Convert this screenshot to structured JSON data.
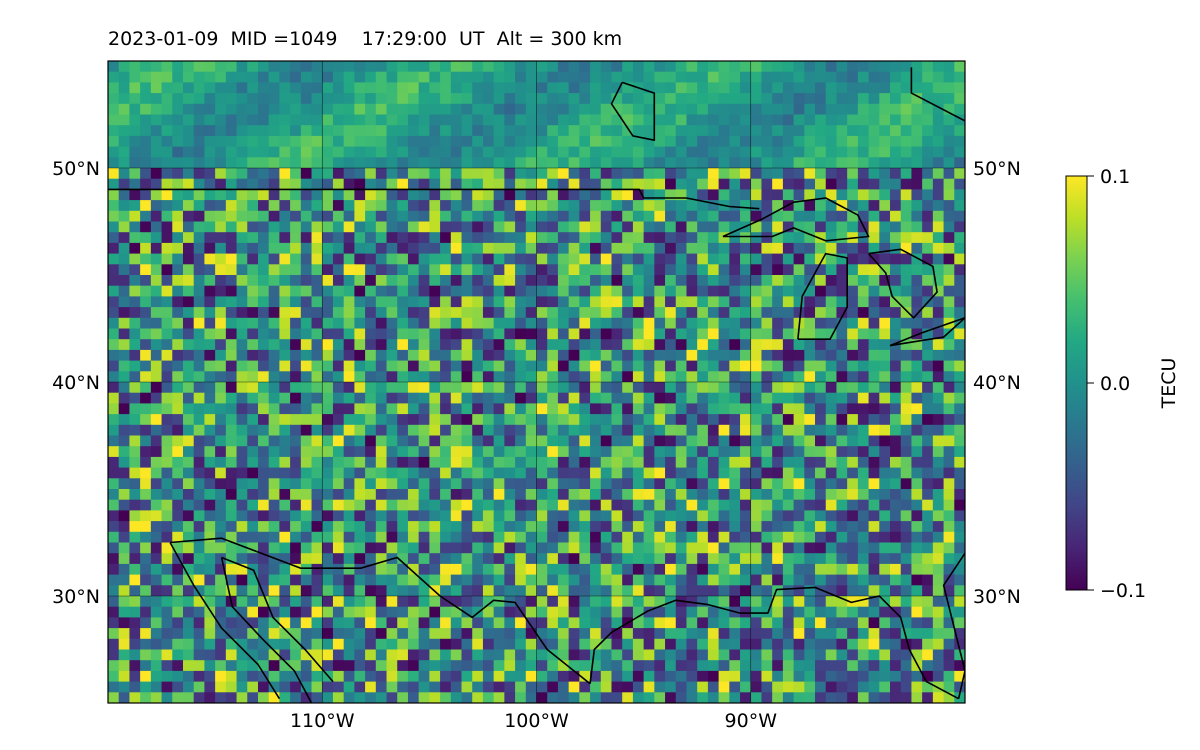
{
  "title": "2023-01-09  MID =1049    17:29:00  UT  Alt = 300 km",
  "map": {
    "lon_range": [
      -120,
      -80
    ],
    "lat_range": [
      25,
      55
    ],
    "lat_ticks": [
      {
        "value": 30,
        "label": "30°N"
      },
      {
        "value": 40,
        "label": "40°N"
      },
      {
        "value": 50,
        "label": "50°N"
      }
    ],
    "lon_ticks": [
      {
        "value": -110,
        "label": "110°W"
      },
      {
        "value": -100,
        "label": "100°W"
      },
      {
        "value": -90,
        "label": "90°W"
      }
    ],
    "grid": true,
    "field": {
      "quantity": "TEC perturbation",
      "units": "TECU",
      "vmin": -0.1,
      "vmax": 0.1,
      "colormap": "viridis",
      "cell_deg": 0.5
    },
    "coastlines": [
      {
        "name": "canada-us-border",
        "points": [
          [
            -120,
            49
          ],
          [
            -95.2,
            49
          ],
          [
            -95,
            48.6
          ],
          [
            -93,
            48.6
          ],
          [
            -91,
            48.2
          ],
          [
            -89.6,
            48.1
          ]
        ]
      },
      {
        "name": "lake-superior",
        "points": [
          [
            -91.3,
            46.8
          ],
          [
            -89.5,
            47.6
          ],
          [
            -88,
            48.4
          ],
          [
            -86.5,
            48.6
          ],
          [
            -85,
            47.8
          ],
          [
            -84.5,
            46.8
          ],
          [
            -86.5,
            46.6
          ],
          [
            -88,
            47.2
          ],
          [
            -89,
            46.8
          ],
          [
            -91.3,
            46.8
          ]
        ]
      },
      {
        "name": "lake-michigan",
        "points": [
          [
            -87.8,
            42
          ],
          [
            -87.6,
            44
          ],
          [
            -86.5,
            46
          ],
          [
            -85.5,
            45.8
          ],
          [
            -85.5,
            43.5
          ],
          [
            -86.3,
            42
          ],
          [
            -87.8,
            42
          ]
        ]
      },
      {
        "name": "lake-huron",
        "points": [
          [
            -84.5,
            46
          ],
          [
            -83,
            46.2
          ],
          [
            -81.5,
            45.4
          ],
          [
            -81.3,
            44.2
          ],
          [
            -82.4,
            43
          ],
          [
            -83.4,
            44
          ],
          [
            -83.7,
            45.1
          ],
          [
            -84.5,
            46
          ]
        ]
      },
      {
        "name": "lake-erie",
        "points": [
          [
            -83.5,
            41.7
          ],
          [
            -82,
            42.3
          ],
          [
            -80,
            43
          ],
          [
            -81,
            42.1
          ],
          [
            -83.5,
            41.7
          ]
        ]
      },
      {
        "name": "hudson-bay-edge",
        "points": [
          [
            -82.5,
            54.7
          ],
          [
            -82.5,
            53.5
          ],
          [
            -80,
            52.2
          ]
        ]
      },
      {
        "name": "canadian-shore",
        "points": [
          [
            -96,
            54
          ],
          [
            -94.5,
            53.5
          ],
          [
            -94.5,
            51.3
          ],
          [
            -95.5,
            51.5
          ],
          [
            -96.5,
            53
          ],
          [
            -96,
            54
          ]
        ]
      },
      {
        "name": "us-mexico-border",
        "points": [
          [
            -117.1,
            32.5
          ],
          [
            -114.7,
            32.7
          ],
          [
            -111,
            31.3
          ],
          [
            -108.2,
            31.3
          ],
          [
            -106.5,
            31.8
          ],
          [
            -104.5,
            30
          ],
          [
            -103,
            29
          ],
          [
            -102,
            29.8
          ],
          [
            -101,
            29.7
          ],
          [
            -99.5,
            27.5
          ],
          [
            -97.5,
            25.9
          ]
        ]
      },
      {
        "name": "gulf-coast",
        "points": [
          [
            -97.5,
            25.9
          ],
          [
            -97.3,
            27.5
          ],
          [
            -96.5,
            28.3
          ],
          [
            -94.8,
            29.3
          ],
          [
            -93.5,
            29.8
          ],
          [
            -92,
            29.6
          ],
          [
            -90.5,
            29.2
          ],
          [
            -89.2,
            29.2
          ],
          [
            -88.8,
            30.3
          ],
          [
            -87,
            30.4
          ],
          [
            -85.3,
            29.7
          ],
          [
            -84,
            30
          ],
          [
            -83,
            29
          ],
          [
            -82.6,
            27.5
          ],
          [
            -81.8,
            26
          ],
          [
            -80.3,
            25.2
          ]
        ]
      },
      {
        "name": "atlantic-coast",
        "points": [
          [
            -80,
            32
          ],
          [
            -81,
            30.5
          ],
          [
            -80.5,
            28.5
          ],
          [
            -80,
            26.5
          ],
          [
            -80.3,
            25.2
          ]
        ]
      },
      {
        "name": "baja-california",
        "points": [
          [
            -117.1,
            32.5
          ],
          [
            -116,
            30.5
          ],
          [
            -114.7,
            28.5
          ],
          [
            -113,
            26.8
          ],
          [
            -112,
            25.2
          ]
        ]
      },
      {
        "name": "gulf-of-california",
        "points": [
          [
            -114.7,
            31.8
          ],
          [
            -114.2,
            29.5
          ],
          [
            -112.8,
            28
          ],
          [
            -111.3,
            26.5
          ],
          [
            -110.5,
            25
          ]
        ]
      },
      {
        "name": "mexico-west-coast",
        "points": [
          [
            -114.7,
            31.8
          ],
          [
            -113.2,
            31.2
          ],
          [
            -112.3,
            29
          ],
          [
            -110.8,
            27.5
          ],
          [
            -109.5,
            26
          ]
        ]
      }
    ]
  },
  "colorbar": {
    "label": "TECU",
    "ticks": [
      {
        "value": 0.1,
        "label": "0.1"
      },
      {
        "value": 0.0,
        "label": "0.0"
      },
      {
        "value": -0.1,
        "label": "−0.1"
      }
    ]
  }
}
